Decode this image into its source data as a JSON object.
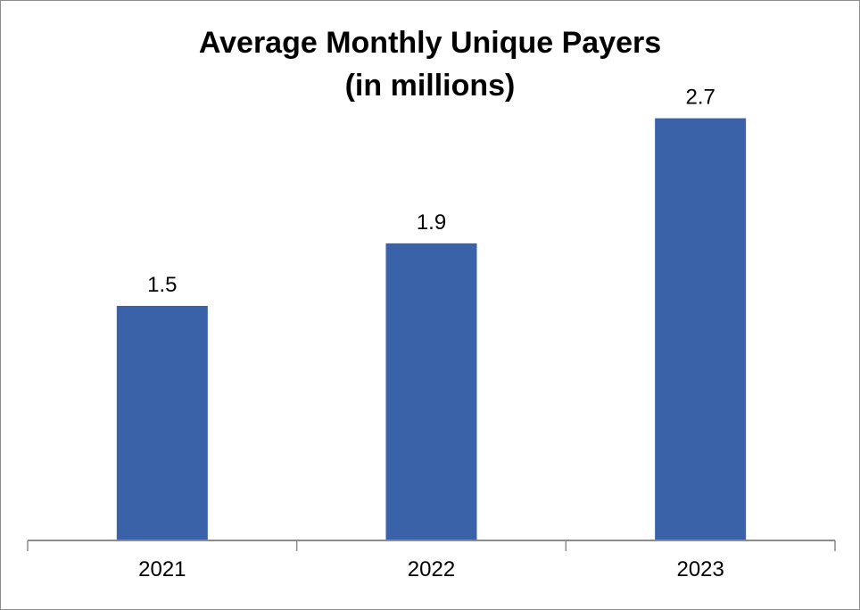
{
  "chart_data": {
    "type": "bar",
    "title": "Average Monthly Unique Payers",
    "subtitle": "(in millions)",
    "categories": [
      "2021",
      "2022",
      "2023"
    ],
    "values": [
      1.5,
      1.9,
      2.7
    ],
    "data_labels": [
      "1.5",
      "1.9",
      "2.7"
    ],
    "xlabel": "",
    "ylabel": "",
    "ylim": [
      0,
      3
    ],
    "grid": false,
    "legend": "none",
    "bar_color": "#3a62a8",
    "axis_color": "#8c8c8c"
  }
}
